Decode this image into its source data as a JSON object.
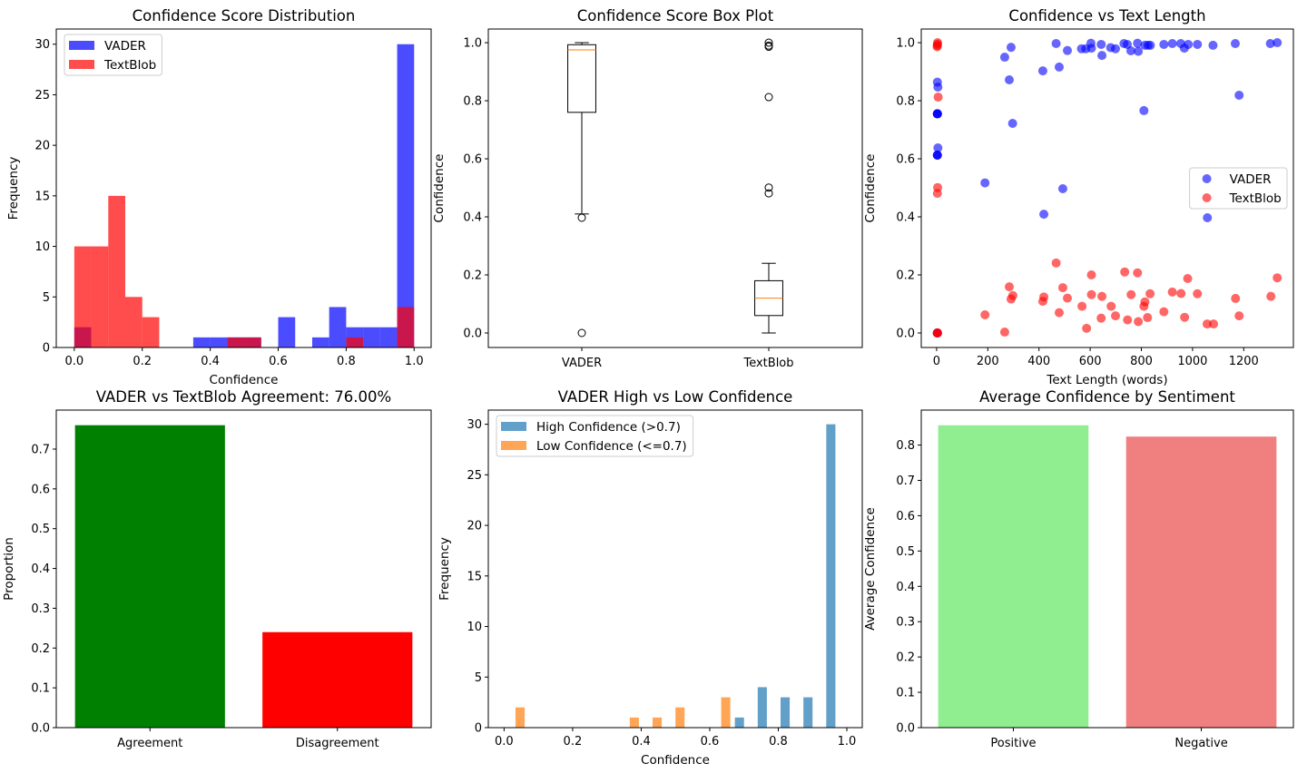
{
  "chart_data": [
    {
      "type": "bar",
      "histtype": "overlay",
      "title": "Confidence Score Distribution",
      "xlabel": "Confidence",
      "ylabel": "Frequency",
      "xlim": [
        -0.053,
        1.05
      ],
      "ylim": [
        0,
        31.5
      ],
      "xticks": [
        0,
        0.2,
        0.4,
        0.6,
        0.8,
        1.0
      ],
      "xtick_labels": [
        "0.0",
        "0.2",
        "0.4",
        "0.6",
        "0.8",
        "1.0"
      ],
      "yticks": [
        0,
        5,
        10,
        15,
        20,
        25,
        30
      ],
      "ytick_labels": [
        "0",
        "5",
        "10",
        "15",
        "20",
        "25",
        "30"
      ],
      "bins": 20,
      "range": [
        0,
        1
      ],
      "legend": "upper left",
      "series": [
        {
          "name": "VADER",
          "color": "#0000ff",
          "alpha": 0.7,
          "counts": [
            2,
            0,
            0,
            0,
            0,
            0,
            0,
            1,
            1,
            1,
            1,
            0,
            3,
            0,
            1,
            4,
            2,
            2,
            2,
            30
          ]
        },
        {
          "name": "TextBlob",
          "color": "#ff0000",
          "alpha": 0.7,
          "counts": [
            10,
            10,
            15,
            5,
            3,
            0,
            0,
            0,
            0,
            1,
            1,
            0,
            0,
            0,
            0,
            0,
            1,
            0,
            0,
            4
          ]
        }
      ]
    },
    {
      "type": "box",
      "title": "Confidence Score Box Plot",
      "xlabel": "",
      "ylabel": "Confidence",
      "xlim": [
        0.5,
        2.5
      ],
      "ylim": [
        -0.05,
        1.047
      ],
      "categories": [
        "VADER",
        "TextBlob"
      ],
      "yticks": [
        0,
        0.2,
        0.4,
        0.6,
        0.8,
        1.0
      ],
      "ytick_labels": [
        "0.0",
        "0.2",
        "0.4",
        "0.6",
        "0.8",
        "1.0"
      ],
      "median_color": "#ff7f0e",
      "boxes": [
        {
          "whisker_low": 0.41,
          "q1": 0.76,
          "median": 0.975,
          "q3": 0.993,
          "whisker_high": 1.0,
          "outliers": [
            0.397,
            0.0
          ]
        },
        {
          "whisker_low": 0.0,
          "q1": 0.06,
          "median": 0.12,
          "q3": 0.18,
          "whisker_high": 0.24,
          "outliers": [
            0.481,
            0.501,
            0.8125,
            0.986,
            0.99,
            1.0
          ]
        }
      ]
    },
    {
      "type": "scatter",
      "title": "Confidence vs Text Length",
      "xlabel": "Text Length (words)",
      "ylabel": "Confidence",
      "xlim": [
        -60,
        1394
      ],
      "ylim": [
        -0.05,
        1.047
      ],
      "xticks": [
        0,
        200,
        400,
        600,
        800,
        1000,
        1200
      ],
      "xtick_labels": [
        "0",
        "200",
        "400",
        "600",
        "800",
        "1000",
        "1200"
      ],
      "yticks": [
        0,
        0.2,
        0.4,
        0.6,
        0.8,
        1.0
      ],
      "ytick_labels": [
        "0.0",
        "0.2",
        "0.4",
        "0.6",
        "0.8",
        "1.0"
      ],
      "legend": "center right",
      "series": [
        {
          "name": "VADER",
          "color": "#0000ff",
          "alpha": 0.6,
          "points": [
            [
              3,
              0.864
            ],
            [
              5,
              0.847
            ],
            [
              3,
              0.755
            ],
            [
              3,
              0.755
            ],
            [
              3,
              0.755
            ],
            [
              3,
              0.755
            ],
            [
              5,
              0.6375
            ],
            [
              3,
              0.6125
            ],
            [
              3,
              0.6125
            ],
            [
              3,
              0.6125
            ],
            [
              3,
              0.0
            ],
            [
              3,
              0.0
            ],
            [
              266,
              0.95
            ],
            [
              291,
              0.984
            ],
            [
              284,
              0.872
            ],
            [
              297,
              0.722
            ],
            [
              189,
              0.517
            ],
            [
              415,
              0.903
            ],
            [
              419,
              0.409
            ],
            [
              467,
              0.997
            ],
            [
              479,
              0.916
            ],
            [
              493,
              0.497
            ],
            [
              511,
              0.973
            ],
            [
              566,
              0.979
            ],
            [
              583,
              0.979
            ],
            [
              603,
              0.998
            ],
            [
              605,
              0.981
            ],
            [
              643,
              0.994
            ],
            [
              646,
              0.956
            ],
            [
              680,
              0.983
            ],
            [
              699,
              0.979
            ],
            [
              732,
              0.997
            ],
            [
              745,
              0.994
            ],
            [
              759,
              0.972
            ],
            [
              785,
              0.998
            ],
            [
              788,
              0.97
            ],
            [
              810,
              0.766
            ],
            [
              814,
              0.991
            ],
            [
              826,
              0.991
            ],
            [
              835,
              0.991
            ],
            [
              888,
              0.994
            ],
            [
              921,
              0.997
            ],
            [
              954,
              0.997
            ],
            [
              968,
              0.981
            ],
            [
              983,
              0.994
            ],
            [
              1019,
              0.994
            ],
            [
              1058,
              0.397
            ],
            [
              1080,
              0.991
            ],
            [
              1167,
              0.997
            ],
            [
              1182,
              0.819
            ],
            [
              1304,
              0.997
            ],
            [
              1331,
              1.0
            ]
          ]
        },
        {
          "name": "TextBlob",
          "color": "#ff0000",
          "alpha": 0.6,
          "points": [
            [
              4,
              1.0
            ],
            [
              2,
              0.986
            ],
            [
              3,
              0.99
            ],
            [
              3,
              0.995
            ],
            [
              6,
              0.8125
            ],
            [
              4,
              0.501
            ],
            [
              3,
              0.481
            ],
            [
              2,
              0.0
            ],
            [
              3,
              0.0
            ],
            [
              4,
              0.0
            ],
            [
              189,
              0.0625
            ],
            [
              266,
              0.003
            ],
            [
              284,
              0.159
            ],
            [
              291,
              0.117
            ],
            [
              298,
              0.129
            ],
            [
              415,
              0.109
            ],
            [
              419,
              0.124
            ],
            [
              467,
              0.241
            ],
            [
              479,
              0.07
            ],
            [
              493,
              0.156
            ],
            [
              511,
              0.12
            ],
            [
              568,
              0.092
            ],
            [
              586,
              0.016
            ],
            [
              605,
              0.2
            ],
            [
              605,
              0.132
            ],
            [
              643,
              0.051
            ],
            [
              646,
              0.126
            ],
            [
              682,
              0.092
            ],
            [
              699,
              0.059
            ],
            [
              735,
              0.21
            ],
            [
              746,
              0.045
            ],
            [
              760,
              0.132
            ],
            [
              785,
              0.207
            ],
            [
              788,
              0.039
            ],
            [
              810,
              0.092
            ],
            [
              814,
              0.107
            ],
            [
              824,
              0.053
            ],
            [
              834,
              0.135
            ],
            [
              888,
              0.073
            ],
            [
              921,
              0.141
            ],
            [
              955,
              0.136
            ],
            [
              969,
              0.054
            ],
            [
              981,
              0.1875
            ],
            [
              1019,
              0.135
            ],
            [
              1057,
              0.031
            ],
            [
              1082,
              0.031
            ],
            [
              1168,
              0.119
            ],
            [
              1182,
              0.059
            ],
            [
              1306,
              0.126
            ],
            [
              1331,
              0.19
            ]
          ]
        }
      ]
    },
    {
      "type": "bar",
      "title": "VADER vs TextBlob Agreement: 76.00%",
      "xlabel": "",
      "ylabel": "Proportion",
      "xlim": [
        -0.5,
        1.5
      ],
      "ylim": [
        0,
        0.798
      ],
      "categories": [
        "Agreement",
        "Disagreement"
      ],
      "values": [
        0.76,
        0.24
      ],
      "colors": [
        "#008000",
        "#ff0000"
      ],
      "yticks": [
        0,
        0.1,
        0.2,
        0.3,
        0.4,
        0.5,
        0.6,
        0.7
      ],
      "ytick_labels": [
        "0.0",
        "0.1",
        "0.2",
        "0.3",
        "0.4",
        "0.5",
        "0.6",
        "0.7"
      ]
    },
    {
      "type": "bar",
      "histtype": "grouped",
      "title": "VADER High vs Low Confidence",
      "xlabel": "Confidence",
      "ylabel": "Frequency",
      "xlim": [
        -0.046,
        1.045
      ],
      "ylim": [
        0,
        31.4
      ],
      "xticks": [
        0,
        0.2,
        0.4,
        0.6,
        0.8,
        1.0
      ],
      "xtick_labels": [
        "0.0",
        "0.2",
        "0.4",
        "0.6",
        "0.8",
        "1.0"
      ],
      "yticks": [
        0,
        5,
        10,
        15,
        20,
        25,
        30
      ],
      "ytick_labels": [
        "0",
        "5",
        "10",
        "15",
        "20",
        "25",
        "30"
      ],
      "bins": 15,
      "range": [
        0,
        1
      ],
      "legend": "upper left",
      "series": [
        {
          "name": "High Confidence (>0.7)",
          "color": "#1f77b4",
          "alpha": 0.7,
          "counts": [
            0,
            0,
            0,
            0,
            0,
            0,
            0,
            0,
            0,
            0,
            1,
            4,
            3,
            3,
            30
          ]
        },
        {
          "name": "Low Confidence (<=0.7)",
          "color": "#ff7f0e",
          "alpha": 0.7,
          "counts": [
            2,
            0,
            0,
            0,
            0,
            1,
            1,
            2,
            0,
            3,
            0,
            0,
            0,
            0,
            0
          ]
        }
      ]
    },
    {
      "type": "bar",
      "title": "Average Confidence by Sentiment",
      "xlabel": "",
      "ylabel": "Average Confidence",
      "xlim": [
        -0.49,
        1.49
      ],
      "ylim": [
        0,
        0.899
      ],
      "categories": [
        "Positive",
        "Negative"
      ],
      "values": [
        0.856,
        0.824
      ],
      "colors": [
        "#90ee90",
        "#f08080"
      ],
      "yticks": [
        0,
        0.1,
        0.2,
        0.3,
        0.4,
        0.5,
        0.6,
        0.7,
        0.8
      ],
      "ytick_labels": [
        "0.0",
        "0.1",
        "0.2",
        "0.3",
        "0.4",
        "0.5",
        "0.6",
        "0.7",
        "0.8"
      ]
    }
  ]
}
